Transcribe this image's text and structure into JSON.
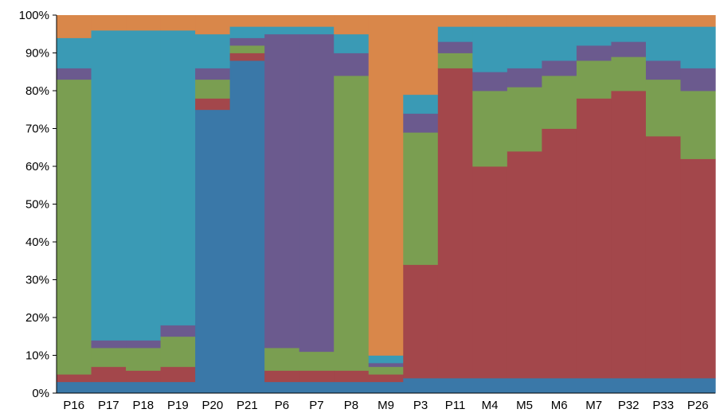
{
  "chart_data": {
    "type": "bar",
    "stacked": true,
    "normalized": true,
    "ylim": [
      0,
      100
    ],
    "y_ticks": [
      "0%",
      "10%",
      "20%",
      "30%",
      "40%",
      "50%",
      "60%",
      "70%",
      "80%",
      "90%",
      "100%"
    ],
    "grid": false,
    "legend": "none",
    "categories": [
      "P16",
      "P17",
      "P18",
      "P19",
      "P20",
      "P21",
      "P6",
      "P7",
      "P8",
      "M9",
      "P3",
      "P11",
      "M4",
      "M5",
      "M6",
      "M7",
      "P32",
      "P33",
      "P26"
    ],
    "cluster_colors": [
      "#3a78a8",
      "#a3474b",
      "#7a9e51",
      "#6b5a8e",
      "#3a9ab5",
      "#d9874a"
    ],
    "group_composition": [
      [
        3,
        2,
        78,
        3,
        8,
        6
      ],
      [
        3,
        4,
        5,
        2,
        82,
        4
      ],
      [
        3,
        3,
        6,
        2,
        82,
        4
      ],
      [
        3,
        4,
        8,
        3,
        78,
        4
      ],
      [
        75,
        3,
        5,
        3,
        9,
        5
      ],
      [
        88,
        2,
        2,
        2,
        3,
        3
      ],
      [
        3,
        3,
        6,
        83,
        2,
        3
      ],
      [
        3,
        3,
        5,
        84,
        2,
        3
      ],
      [
        3,
        3,
        78,
        6,
        5,
        5
      ],
      [
        3,
        2,
        2,
        1,
        2,
        90
      ],
      [
        4,
        30,
        35,
        5,
        5,
        21
      ],
      [
        4,
        82,
        4,
        3,
        4,
        3
      ],
      [
        4,
        56,
        20,
        5,
        12,
        3
      ],
      [
        4,
        60,
        17,
        5,
        11,
        3
      ],
      [
        4,
        66,
        14,
        4,
        9,
        3
      ],
      [
        4,
        74,
        10,
        4,
        5,
        3
      ],
      [
        4,
        76,
        9,
        4,
        4,
        3
      ],
      [
        4,
        64,
        15,
        5,
        9,
        3
      ],
      [
        4,
        58,
        18,
        6,
        11,
        3
      ]
    ]
  }
}
